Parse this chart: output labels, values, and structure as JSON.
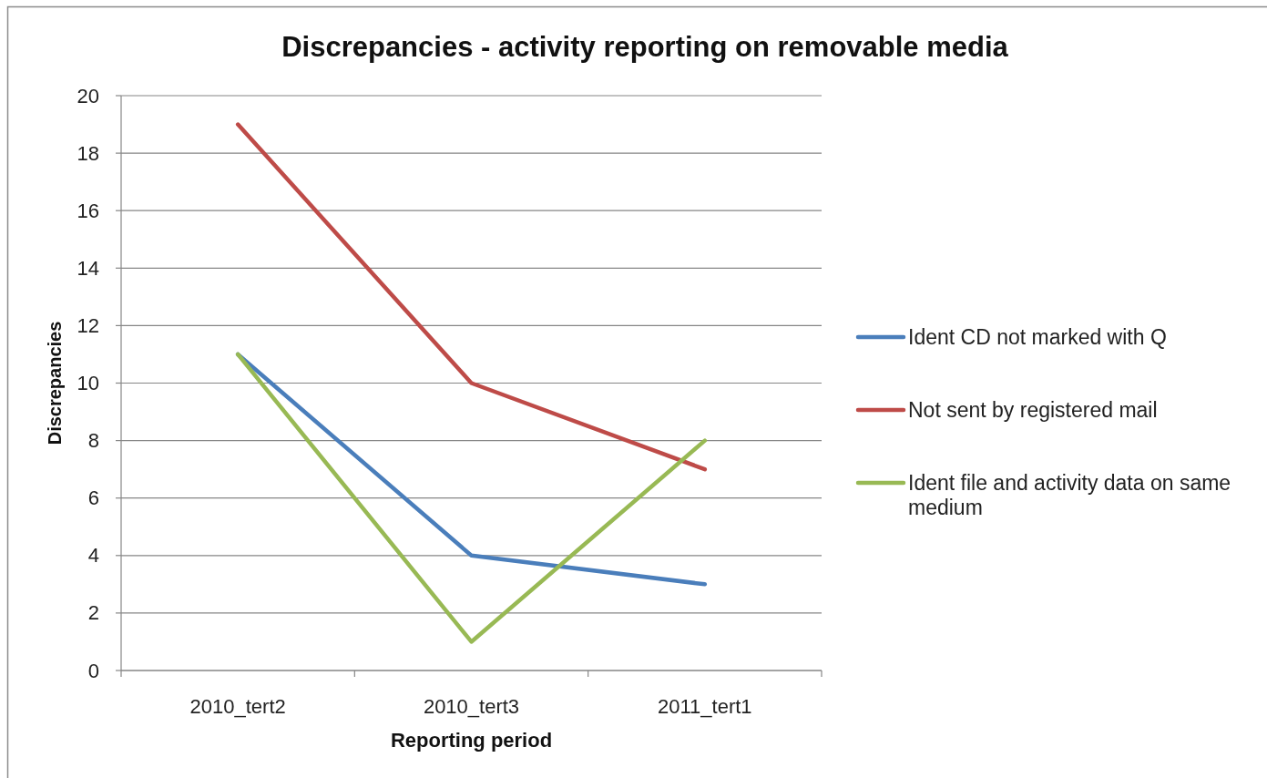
{
  "chart_data": {
    "type": "line",
    "title": "Discrepancies - activity reporting on removable media",
    "xlabel": "Reporting period",
    "ylabel": "Discrepancies",
    "categories": [
      "2010_tert2",
      "2010_tert3",
      "2011_tert1"
    ],
    "series": [
      {
        "name": "Ident CD not marked with Q",
        "color": "#4a7ebb",
        "values": [
          11,
          4,
          3
        ]
      },
      {
        "name": "Not sent by registered mail",
        "color": "#be4b48",
        "values": [
          19,
          10,
          7
        ]
      },
      {
        "name": "Ident file and activity data on same medium",
        "color": "#98b954",
        "values": [
          11,
          1,
          8
        ]
      }
    ],
    "ylim": [
      0,
      20
    ],
    "yticks": [
      0,
      2,
      4,
      6,
      8,
      10,
      12,
      14,
      16,
      18,
      20
    ],
    "grid": "y",
    "legend": "right",
    "marker": "none",
    "line_style": "solid"
  }
}
